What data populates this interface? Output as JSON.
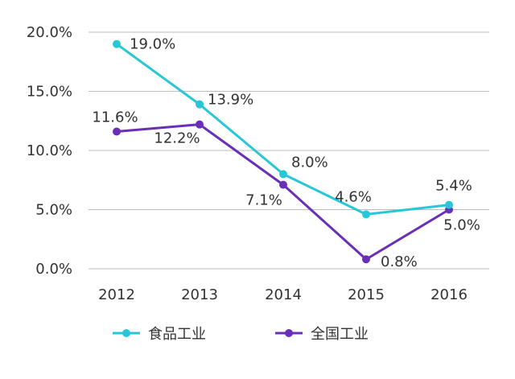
{
  "chart_data": {
    "type": "line",
    "title": "",
    "xlabel": "",
    "ylabel": "",
    "categories": [
      "2012",
      "2013",
      "2014",
      "2015",
      "2016"
    ],
    "ylim": [
      0,
      20
    ],
    "yticks": [
      0,
      5,
      10,
      15,
      20
    ],
    "ytick_labels": [
      "0.0%",
      "5.0%",
      "10.0%",
      "15.0%",
      "20.0%"
    ],
    "grid": true,
    "legend_position": "bottom",
    "series": [
      {
        "name": "食品工业",
        "color": "#27c7d8",
        "values": [
          19.0,
          13.9,
          8.0,
          4.6,
          5.4
        ],
        "labels": [
          "19.0%",
          "13.9%",
          "8.0%",
          "4.6%",
          "5.4%"
        ]
      },
      {
        "name": "全国工业",
        "color": "#6a2fb8",
        "values": [
          11.6,
          12.2,
          7.1,
          0.8,
          5.0
        ],
        "labels": [
          "11.6%",
          "12.2%",
          "7.1%",
          "0.8%",
          "5.0%"
        ]
      }
    ]
  }
}
